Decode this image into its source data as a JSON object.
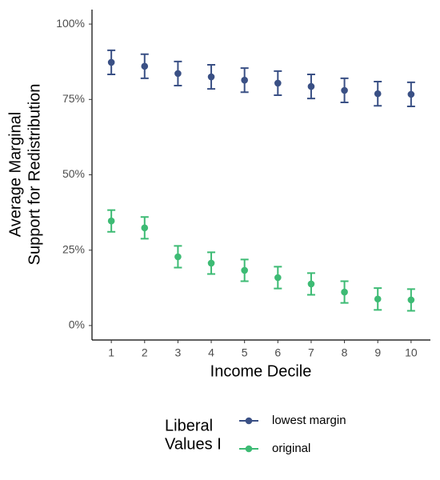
{
  "chart_data": {
    "type": "errorbar",
    "xlabel": "Income Decile",
    "ylabel": [
      "Average Marginal",
      "Support for Redistribution"
    ],
    "legend_title": [
      "Liberal",
      "Values I"
    ],
    "x": [
      1,
      2,
      3,
      4,
      5,
      6,
      7,
      8,
      9,
      10
    ],
    "series": [
      {
        "name": "lowest margin",
        "color": "#3a5085",
        "values": [
          87.3,
          86.0,
          83.6,
          82.5,
          81.4,
          80.4,
          79.3,
          78.0,
          76.9,
          76.7
        ],
        "errors": [
          4.0,
          4.0,
          4.0,
          4.0,
          4.0,
          4.0,
          4.0,
          4.0,
          4.0,
          4.0
        ]
      },
      {
        "name": "original",
        "color": "#3dbb74",
        "values": [
          34.7,
          32.4,
          22.8,
          20.7,
          18.3,
          15.9,
          13.8,
          11.1,
          8.8,
          8.5
        ],
        "errors": [
          3.6,
          3.6,
          3.6,
          3.6,
          3.6,
          3.6,
          3.6,
          3.6,
          3.6,
          3.6
        ]
      }
    ],
    "xlim": [
      0.42,
      10.58
    ],
    "xticks": [
      1,
      2,
      3,
      4,
      5,
      6,
      7,
      8,
      9,
      10
    ],
    "ylim": [
      -4.8,
      104.8
    ],
    "yticks": [
      {
        "value": 0,
        "label": "0%"
      },
      {
        "value": 25,
        "label": "25%"
      },
      {
        "value": 50,
        "label": "50%"
      },
      {
        "value": 75,
        "label": "75%"
      },
      {
        "value": 100,
        "label": "100%"
      }
    ],
    "grid": false
  }
}
